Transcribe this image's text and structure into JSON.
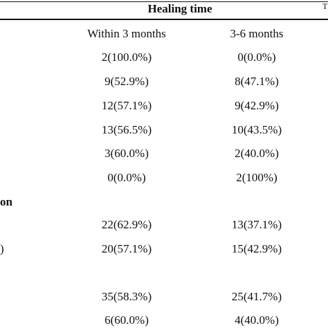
{
  "table": {
    "group_header": "Healing time",
    "corner_mark": "T",
    "columns": [
      "Within 3 months",
      "3-6 months"
    ],
    "row_fragments": {
      "section_label": "on",
      "row_mark": ")"
    },
    "rows": [
      [
        "2(100.0%)",
        "0(0.0%)"
      ],
      [
        "9(52.9%)",
        "8(47.1%)"
      ],
      [
        "12(57.1%)",
        "9(42.9%)"
      ],
      [
        "13(56.5%)",
        "10(43.5%)"
      ],
      [
        "3(60.0%)",
        "2(40.0%)"
      ],
      [
        "0(0.0%)",
        "2(100%)"
      ],
      [
        "22(62.9%)",
        "13(37.1%)"
      ],
      [
        "20(57.1%)",
        "15(42.9%)"
      ],
      [
        "35(58.3%)",
        "25(41.7%)"
      ],
      [
        "6(60.0%)",
        "4(40.0%)"
      ]
    ]
  }
}
